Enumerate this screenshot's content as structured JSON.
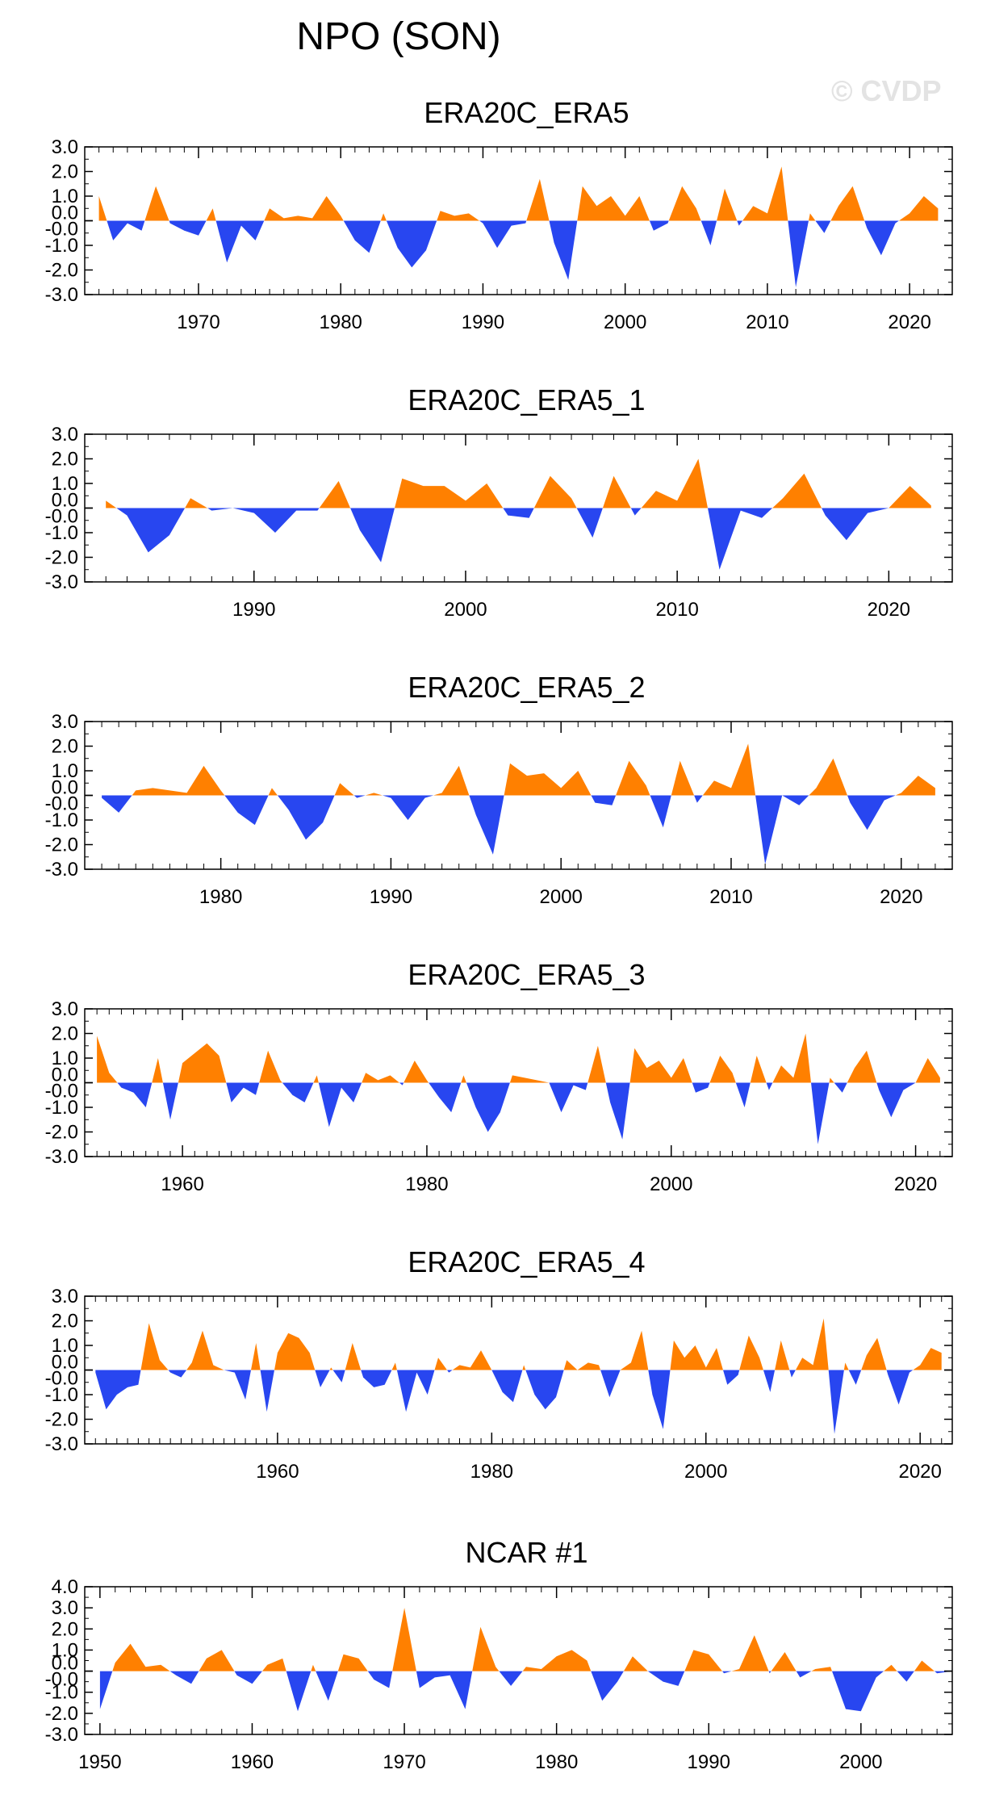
{
  "title": "NPO (SON)",
  "watermark": "© CVDP",
  "colors": {
    "positive": "#ff8000",
    "negative": "#2846f0",
    "frame": "#000000"
  },
  "chart_data": [
    {
      "type": "area",
      "title": "ERA20C_ERA5",
      "x_start": 1963,
      "xlim": [
        1962,
        2023
      ],
      "xticks": [
        1970,
        1980,
        1990,
        2000,
        2010,
        2020
      ],
      "ylim": [
        -3.0,
        3.0
      ],
      "yticks": [
        "3.0",
        "2.0",
        "1.0",
        "0.0",
        "-0.0",
        "-1.0",
        "-2.0",
        "-3.0"
      ],
      "values": [
        1.0,
        -0.8,
        -0.1,
        -0.4,
        1.4,
        -0.1,
        -0.4,
        -0.6,
        0.5,
        -1.7,
        -0.2,
        -0.8,
        0.5,
        0.1,
        0.2,
        0.1,
        1.0,
        0.2,
        -0.8,
        -1.3,
        0.3,
        -1.1,
        -1.9,
        -1.2,
        0.4,
        0.2,
        0.3,
        -0.1,
        -1.1,
        -0.2,
        -0.1,
        1.7,
        -0.9,
        -2.4,
        1.4,
        0.6,
        1.0,
        0.2,
        1.0,
        -0.4,
        -0.1,
        1.4,
        0.5,
        -1.0,
        1.3,
        -0.2,
        0.6,
        0.3,
        2.2,
        -2.7,
        0.3,
        -0.5,
        0.6,
        1.4,
        -0.3,
        -1.4,
        -0.1,
        0.3,
        1.0,
        0.5
      ]
    },
    {
      "type": "area",
      "title": "ERA20C_ERA5_1",
      "x_start": 1983,
      "xlim": [
        1982,
        2023
      ],
      "xticks": [
        1990,
        2000,
        2010,
        2020
      ],
      "ylim": [
        -3.0,
        3.0
      ],
      "yticks": [
        "3.0",
        "2.0",
        "1.0",
        "0.0",
        "-0.0",
        "-1.0",
        "-2.0",
        "-3.0"
      ],
      "values": [
        0.3,
        -0.3,
        -1.8,
        -1.1,
        0.4,
        -0.1,
        0.0,
        -0.2,
        -1.0,
        -0.1,
        -0.1,
        1.1,
        -0.9,
        -2.2,
        1.2,
        0.9,
        0.9,
        0.3,
        1.0,
        -0.3,
        -0.4,
        1.3,
        0.4,
        -1.2,
        1.3,
        -0.3,
        0.7,
        0.3,
        2.0,
        -2.5,
        -0.1,
        -0.4,
        0.4,
        1.4,
        -0.3,
        -1.3,
        -0.2,
        0.0,
        0.9,
        0.1
      ]
    },
    {
      "type": "area",
      "title": "ERA20C_ERA5_2",
      "x_start": 1973,
      "xlim": [
        1972,
        2023
      ],
      "xticks": [
        1980,
        1990,
        2000,
        2010,
        2020
      ],
      "ylim": [
        -3.0,
        3.0
      ],
      "yticks": [
        "3.0",
        "2.0",
        "1.0",
        "0.0",
        "-0.0",
        "-1.0",
        "-2.0",
        "-3.0"
      ],
      "values": [
        -0.1,
        -0.7,
        0.2,
        0.3,
        0.2,
        0.1,
        1.2,
        0.2,
        -0.7,
        -1.2,
        0.3,
        -0.6,
        -1.8,
        -1.1,
        0.5,
        -0.1,
        0.1,
        -0.1,
        -1.0,
        -0.1,
        0.1,
        1.2,
        -0.8,
        -2.4,
        1.3,
        0.8,
        0.9,
        0.3,
        1.0,
        -0.3,
        -0.4,
        1.4,
        0.4,
        -1.3,
        1.4,
        -0.3,
        0.6,
        0.3,
        2.1,
        -2.8,
        0.0,
        -0.4,
        0.3,
        1.5,
        -0.3,
        -1.4,
        -0.2,
        0.1,
        0.8,
        0.3
      ]
    },
    {
      "type": "area",
      "title": "ERA20C_ERA5_3",
      "x_start": 1953,
      "xlim": [
        1952,
        2023
      ],
      "xticks": [
        1960,
        1980,
        2000,
        2020
      ],
      "ylim": [
        -3.0,
        3.0
      ],
      "yticks": [
        "3.0",
        "2.0",
        "1.0",
        "0.0",
        "-0.0",
        "-1.0",
        "-2.0",
        "-3.0"
      ],
      "values": [
        1.9,
        0.4,
        -0.2,
        -0.4,
        -1.0,
        1.0,
        -1.5,
        0.8,
        1.2,
        1.6,
        1.1,
        -0.8,
        -0.2,
        -0.5,
        1.3,
        0.1,
        -0.5,
        -0.8,
        0.3,
        -1.8,
        -0.2,
        -0.8,
        0.4,
        0.1,
        0.3,
        -0.1,
        0.9,
        0.1,
        -0.6,
        -1.2,
        0.3,
        -1.0,
        -2.0,
        -1.2,
        0.3,
        0.2,
        0.1,
        0.0,
        -1.2,
        -0.1,
        -0.3,
        1.5,
        -0.8,
        -2.3,
        1.4,
        0.6,
        0.9,
        0.2,
        1.0,
        -0.4,
        -0.2,
        1.1,
        0.4,
        -1.0,
        1.1,
        -0.3,
        0.7,
        0.2,
        2.0,
        -2.5,
        0.2,
        -0.4,
        0.6,
        1.3,
        -0.3,
        -1.4,
        -0.3,
        0.0,
        1.0,
        0.2
      ]
    },
    {
      "type": "area",
      "title": "ERA20C_ERA5_4",
      "x_start": 1943,
      "xlim": [
        1942,
        2023
      ],
      "xticks": [
        1960,
        1980,
        2000,
        2020
      ],
      "ylim": [
        -3.0,
        3.0
      ],
      "yticks": [
        "3.0",
        "2.0",
        "1.0",
        "0.0",
        "-0.0",
        "-1.0",
        "-2.0",
        "-3.0"
      ],
      "values": [
        -0.1,
        -1.6,
        -1.0,
        -0.7,
        -0.6,
        1.9,
        0.4,
        -0.1,
        -0.3,
        0.3,
        1.6,
        0.2,
        0.0,
        -0.1,
        -1.2,
        1.1,
        -1.7,
        0.7,
        1.5,
        1.3,
        0.7,
        -0.7,
        0.1,
        -0.5,
        1.1,
        -0.3,
        -0.7,
        -0.6,
        0.3,
        -1.7,
        -0.1,
        -1.0,
        0.5,
        -0.1,
        0.2,
        0.1,
        0.8,
        0.0,
        -0.9,
        -1.3,
        0.2,
        -1.0,
        -1.6,
        -1.1,
        0.4,
        0.0,
        0.3,
        0.2,
        -1.1,
        0.0,
        0.3,
        1.6,
        -1.0,
        -2.4,
        1.2,
        0.5,
        1.0,
        0.1,
        0.9,
        -0.6,
        -0.2,
        1.4,
        0.5,
        -0.9,
        1.2,
        -0.3,
        0.5,
        0.2,
        2.1,
        -2.6,
        0.3,
        -0.6,
        0.6,
        1.3,
        -0.2,
        -1.4,
        -0.1,
        0.2,
        0.9,
        0.7
      ]
    },
    {
      "type": "area",
      "title": "NCAR #1",
      "x_start": 1950,
      "xlim": [
        1949,
        2006
      ],
      "xticks": [
        1950,
        1960,
        1970,
        1980,
        1990,
        2000
      ],
      "ylim": [
        -3.0,
        4.0
      ],
      "yticks": [
        "4.0",
        "3.0",
        "2.0",
        "1.0",
        "0.0",
        "-0.0",
        "-1.0",
        "-2.0",
        "-3.0"
      ],
      "values": [
        -1.8,
        0.4,
        1.3,
        0.2,
        0.3,
        -0.2,
        -0.6,
        0.6,
        1.0,
        -0.2,
        -0.6,
        0.3,
        0.6,
        -1.9,
        0.3,
        -1.4,
        0.8,
        0.6,
        -0.4,
        -0.8,
        3.0,
        -0.8,
        -0.3,
        -0.2,
        -1.8,
        2.1,
        0.2,
        -0.7,
        0.2,
        0.1,
        0.7,
        1.0,
        0.5,
        -1.4,
        -0.5,
        0.7,
        0.0,
        -0.5,
        -0.7,
        1.0,
        0.8,
        -0.1,
        0.1,
        1.7,
        -0.1,
        0.9,
        -0.3,
        0.1,
        0.2,
        -1.8,
        -1.9,
        -0.3,
        0.3,
        -0.5,
        0.5,
        -0.1,
        0.0
      ]
    }
  ]
}
